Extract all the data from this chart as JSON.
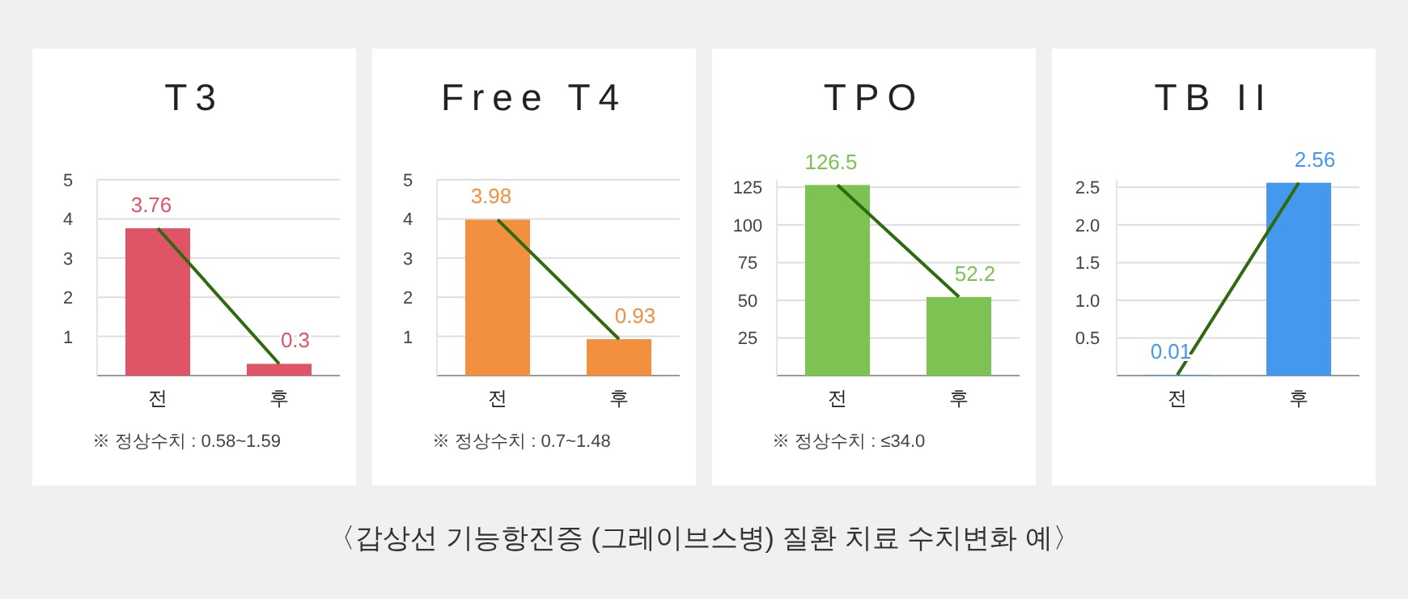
{
  "chart_data": [
    {
      "type": "bar",
      "title": "T3",
      "categories": [
        "전",
        "후"
      ],
      "ylim": [
        0,
        5
      ],
      "yticks": [
        1,
        2,
        3,
        4,
        5
      ],
      "grid": "y",
      "annotations": [
        "※ 정상수치 : 0.58~1.59"
      ],
      "series": [
        {
          "type": "bar",
          "color": "#e05468",
          "values": [
            3.76,
            0.3
          ],
          "value_labels": [
            "3.76",
            "0.3"
          ]
        },
        {
          "type": "line",
          "color": "#2e6b0e",
          "values": [
            3.76,
            0.3
          ]
        }
      ]
    },
    {
      "type": "bar",
      "title": "Free T4",
      "categories": [
        "전",
        "후"
      ],
      "ylim": [
        0,
        5
      ],
      "yticks": [
        1,
        2,
        3,
        4,
        5
      ],
      "grid": "y",
      "annotations": [
        "※ 정상수치 : 0.7~1.48"
      ],
      "series": [
        {
          "type": "bar",
          "color": "#f39040",
          "values": [
            3.98,
            0.93
          ],
          "value_labels": [
            "3.98",
            "0.93"
          ]
        },
        {
          "type": "line",
          "color": "#2e6b0e",
          "values": [
            3.98,
            0.93
          ]
        }
      ]
    },
    {
      "type": "bar",
      "title": "TPO",
      "categories": [
        "전",
        "후"
      ],
      "ylim": [
        0,
        130
      ],
      "yticks": [
        25,
        50,
        75,
        100,
        125
      ],
      "grid": "y",
      "annotations": [
        "※ 정상수치 : ≤34.0"
      ],
      "series": [
        {
          "type": "bar",
          "color": "#7dc353",
          "values": [
            126.5,
            52.2
          ],
          "value_labels": [
            "126.5",
            "52.2"
          ]
        },
        {
          "type": "line",
          "color": "#2e6b0e",
          "values": [
            126.5,
            52.2
          ]
        }
      ]
    },
    {
      "type": "bar",
      "title": "TB II",
      "categories": [
        "전",
        "후"
      ],
      "ylim": [
        0,
        2.6
      ],
      "yticks": [
        {
          "value": 0.5,
          "label": "0.5"
        },
        {
          "value": 1,
          "label": "1.0"
        },
        {
          "value": 1.5,
          "label": "1.5"
        },
        {
          "value": 2,
          "label": "2.0"
        },
        {
          "value": 2.5,
          "label": "2.5"
        }
      ],
      "grid": "y",
      "series": [
        {
          "type": "bar",
          "color": "#4499ee",
          "values": [
            0.01,
            2.56
          ],
          "value_labels": [
            "0.01",
            "2.56"
          ]
        },
        {
          "type": "line",
          "color": "#2e6b0e",
          "values": [
            0.01,
            2.56
          ]
        }
      ]
    },
    {
      "type": "other",
      "title": "〈갑상선 기능항진증 (그레이브스병) 질환 치료 수치변화 예〉"
    }
  ]
}
